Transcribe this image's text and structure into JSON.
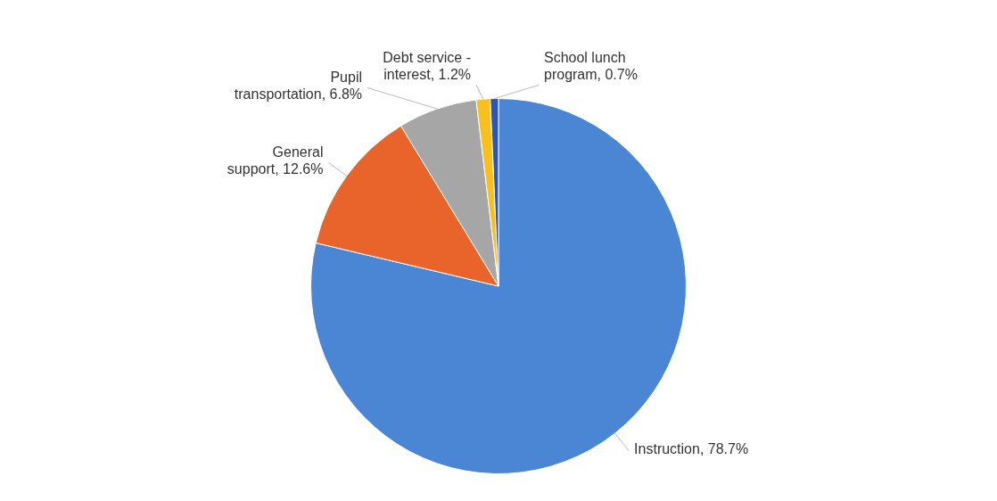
{
  "chart_data": {
    "type": "pie",
    "categories": [
      "Instruction",
      "General support",
      "Pupil transportation",
      "Debt service - interest",
      "School lunch program"
    ],
    "values": [
      78.7,
      12.6,
      6.8,
      1.2,
      0.7
    ],
    "value_labels": [
      "78.7%",
      "12.6%",
      "6.8%",
      "1.2%",
      "0.7%"
    ],
    "colors": [
      "#4a86d4",
      "#e8642a",
      "#a6a6a6",
      "#f7c01e",
      "#2a56b5"
    ],
    "legend": false
  }
}
